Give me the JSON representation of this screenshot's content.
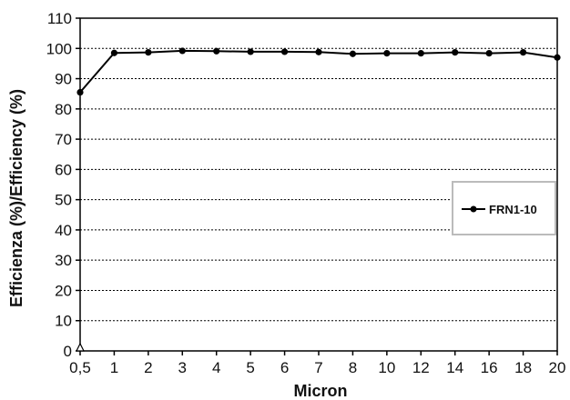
{
  "chart_data": {
    "type": "line",
    "xlabel": "Micron",
    "ylabel": "Efficienza (%)/Efficiency (%)",
    "categories": [
      "0,5",
      "1",
      "2",
      "3",
      "4",
      "5",
      "6",
      "7",
      "8",
      "10",
      "12",
      "14",
      "16",
      "18",
      "20"
    ],
    "series": [
      {
        "name": "FRN1-10",
        "values": [
          85.5,
          98.5,
          98.7,
          99.2,
          99.1,
          98.9,
          98.9,
          98.8,
          98.2,
          98.4,
          98.4,
          98.7,
          98.4,
          98.7,
          97.0
        ]
      }
    ],
    "ylim": [
      0,
      110
    ],
    "yticks": [
      0,
      10,
      20,
      30,
      40,
      50,
      60,
      70,
      80,
      90,
      100,
      110
    ],
    "grid": "horizontal-dotted",
    "legend_position": "right",
    "colors": {
      "line": "#000000",
      "grid": "#000000",
      "legend_border": "#bbbbbb"
    }
  }
}
